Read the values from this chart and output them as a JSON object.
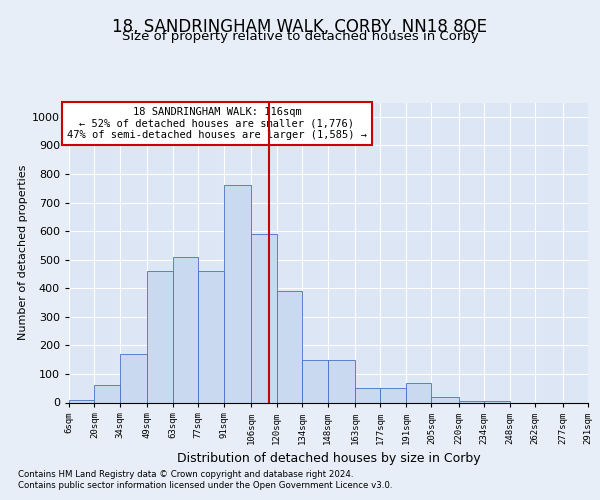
{
  "title": "18, SANDRINGHAM WALK, CORBY, NN18 8QE",
  "subtitle": "Size of property relative to detached houses in Corby",
  "xlabel": "Distribution of detached houses by size in Corby",
  "ylabel": "Number of detached properties",
  "footnote1": "Contains HM Land Registry data © Crown copyright and database right 2024.",
  "footnote2": "Contains public sector information licensed under the Open Government Licence v3.0.",
  "property_label": "18 SANDRINGHAM WALK: 116sqm",
  "annotation_line1": "← 52% of detached houses are smaller (1,776)",
  "annotation_line2": "47% of semi-detached houses are larger (1,585) →",
  "bar_edges": [
    6,
    20,
    34,
    49,
    63,
    77,
    91,
    106,
    120,
    134,
    148,
    163,
    177,
    191,
    205,
    220,
    234,
    248,
    262,
    277,
    291
  ],
  "bar_heights": [
    10,
    60,
    170,
    460,
    510,
    460,
    760,
    590,
    390,
    150,
    150,
    50,
    50,
    70,
    20,
    5,
    5,
    0,
    0,
    0
  ],
  "bar_color": "#c9d9f0",
  "bar_edge_color": "#4472c4",
  "vline_x": 116,
  "vline_color": "#cc0000",
  "ylim": [
    0,
    1050
  ],
  "yticks": [
    0,
    100,
    200,
    300,
    400,
    500,
    600,
    700,
    800,
    900,
    1000
  ],
  "bg_color": "#e8eef7",
  "plot_bg_color": "#dce6f5",
  "grid_color": "#ffffff",
  "annotation_box_color": "#ffffff",
  "annotation_box_edge": "#cc0000",
  "tick_labels": [
    "6sqm",
    "20sqm",
    "34sqm",
    "49sqm",
    "63sqm",
    "77sqm",
    "91sqm",
    "106sqm",
    "120sqm",
    "134sqm",
    "148sqm",
    "163sqm",
    "177sqm",
    "191sqm",
    "205sqm",
    "220sqm",
    "234sqm",
    "248sqm",
    "262sqm",
    "277sqm",
    "291sqm"
  ]
}
